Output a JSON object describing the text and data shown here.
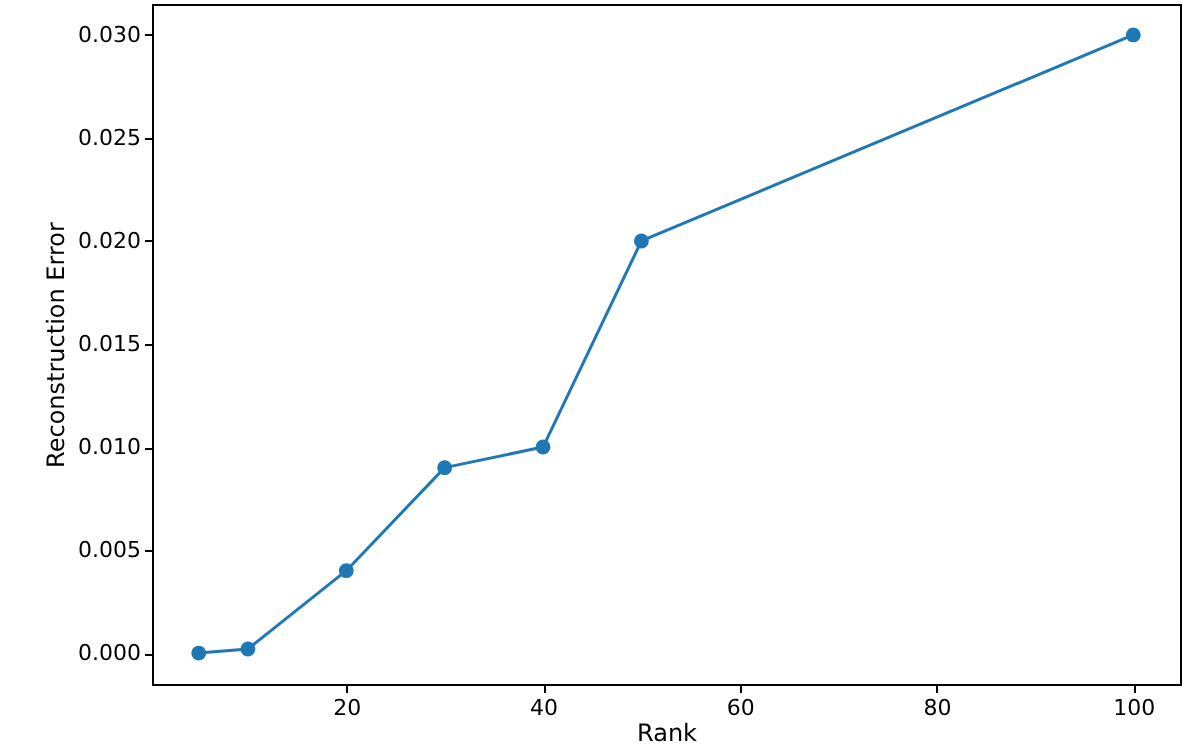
{
  "chart_data": {
    "type": "line",
    "xlabel": "Rank",
    "ylabel": "Reconstruction Error",
    "x": [
      5,
      10,
      20,
      30,
      40,
      50,
      100
    ],
    "series": [
      {
        "color": "#1f77b4",
        "values": [
          0.0,
          0.0002,
          0.004,
          0.009,
          0.01,
          0.02,
          0.03
        ]
      }
    ],
    "xlim": [
      0.25,
      104.75
    ],
    "xticks": [
      20,
      40,
      60,
      80,
      100
    ],
    "ylim": [
      -0.0015,
      0.0315
    ],
    "yticks": [
      {
        "value": 0,
        "label": "0.000"
      },
      {
        "value": 0.005,
        "label": "0.005"
      },
      {
        "value": 0.01,
        "label": "0.010"
      },
      {
        "value": 0.015,
        "label": "0.015"
      },
      {
        "value": 0.02,
        "label": "0.020"
      },
      {
        "value": 0.025,
        "label": "0.025"
      },
      {
        "value": 0.03,
        "label": "0.030"
      }
    ],
    "grid": false,
    "marker": "circle",
    "line_style": "solid"
  }
}
